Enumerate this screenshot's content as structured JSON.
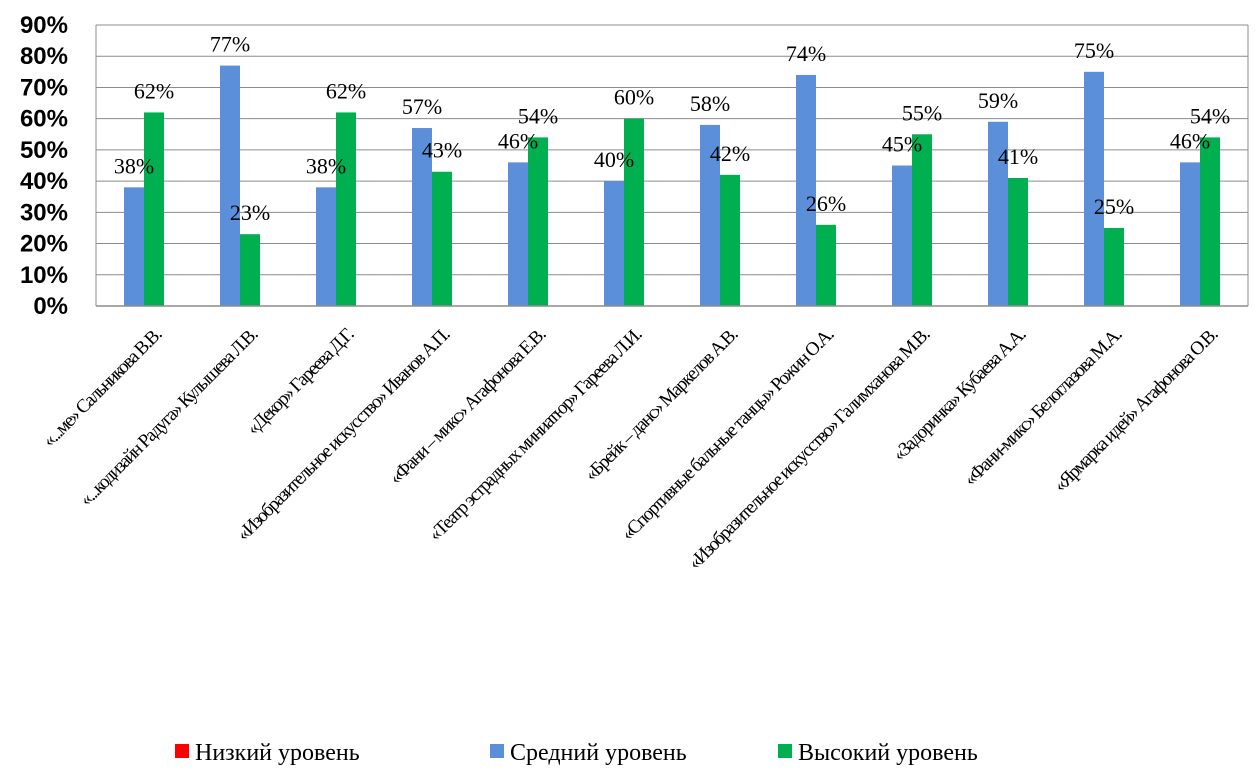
{
  "chart_data": {
    "type": "bar",
    "categories": [
      "«...ме» Сальникова В.В.",
      "«...кодизайн Радуга» Кулышева Л.В.",
      "«Декор» Гареева Д.Г.",
      "«Изобразительное искусство» Иванов А.П.",
      "«Фани – микс» Агафонова Е.В.",
      "«Театр эстрадных миниатюр» Гареева Л.И.",
      "«Брейк – данс» Маркелов А.В.",
      "«Спортивные бальные танцы» Рожин О.А.",
      "«Изобразительное искусство» Галимханова М.В.",
      "«Задоринка» Кубаева А.А.",
      "«Фани-микс» Белоглазова М.А.",
      "«Ярмарка идей» Агафонова О.В."
    ],
    "series": [
      {
        "name": "Низкий уровень",
        "color": "#ff0000",
        "values": [
          0,
          0,
          0,
          0,
          0,
          0,
          0,
          0,
          0,
          0,
          0,
          0
        ]
      },
      {
        "name": "Средний уровень",
        "color": "#5b8fd9",
        "values": [
          38,
          77,
          38,
          57,
          46,
          40,
          58,
          74,
          45,
          59,
          75,
          46
        ]
      },
      {
        "name": "Высокий уровень",
        "color": "#00b050",
        "values": [
          62,
          23,
          62,
          43,
          54,
          60,
          42,
          26,
          55,
          41,
          25,
          54
        ]
      }
    ],
    "data_labels": [
      [
        "",
        "",
        "",
        "",
        "",
        "",
        "",
        "",
        "",
        "",
        "",
        ""
      ],
      [
        "38%",
        "77%",
        "38%",
        "57%",
        "46%",
        "40%",
        "58%",
        "74%",
        "45%",
        "59%",
        "75%",
        "46%"
      ],
      [
        "62%",
        "23%",
        "62%",
        "43%",
        "54%",
        "60%",
        "42%",
        "26%",
        "55%",
        "41%",
        "25%",
        "54%"
      ]
    ],
    "y_ticks": [
      "0%",
      "10%",
      "20%",
      "30%",
      "40%",
      "50%",
      "60%",
      "70%",
      "80%",
      "90%"
    ],
    "ylim": [
      0,
      90
    ],
    "grid": true,
    "legend_position": "bottom",
    "title": "",
    "xlabel": "",
    "ylabel": ""
  }
}
